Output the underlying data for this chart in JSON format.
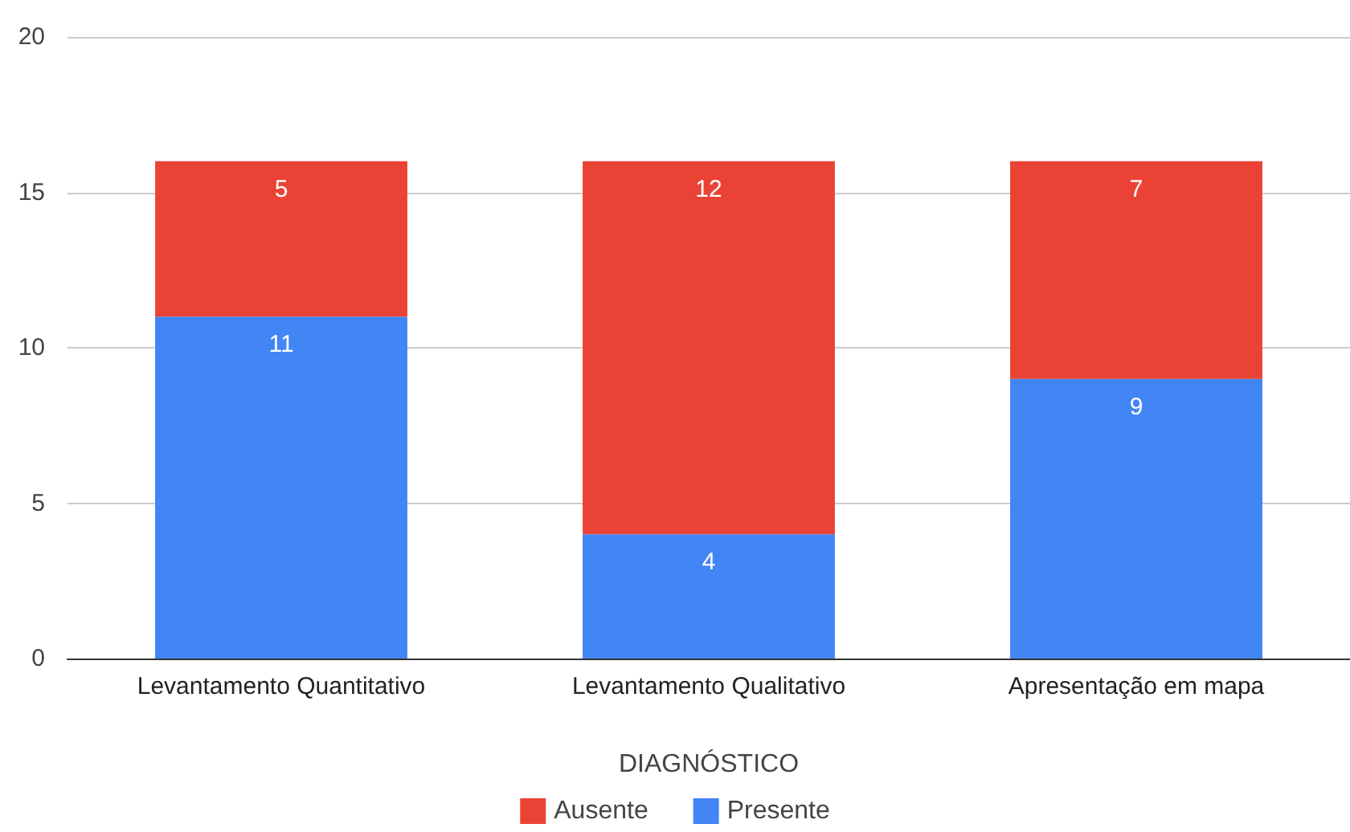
{
  "chart_data": {
    "type": "bar",
    "stacked": true,
    "xlabel": "DIAGNÓSTICO",
    "categories": [
      "Levantamento Quantitativo",
      "Levantamento Qualitativo",
      "Apresentação em mapa"
    ],
    "series": [
      {
        "name": "Presente",
        "color": "#4285f4",
        "values": [
          11,
          4,
          9
        ]
      },
      {
        "name": "Ausente",
        "color": "#ea4335",
        "values": [
          5,
          12,
          7
        ]
      }
    ],
    "ylim": [
      0,
      20
    ],
    "yticks": [
      0,
      5,
      10,
      15,
      20
    ],
    "grid": "y",
    "legend": "bottom",
    "data_labels": true
  }
}
